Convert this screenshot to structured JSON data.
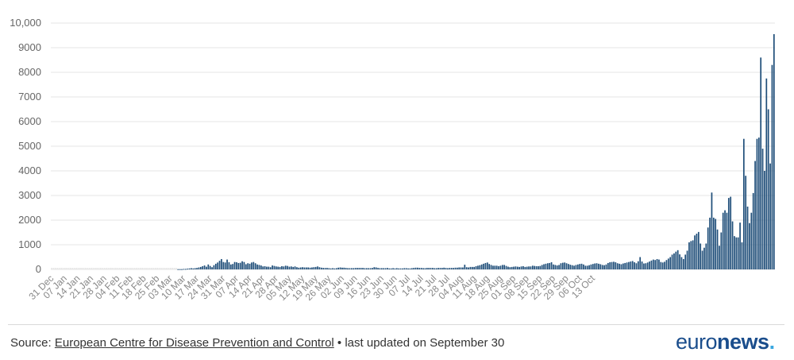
{
  "chart_data": {
    "type": "bar",
    "title": "",
    "xlabel": "",
    "ylabel": "",
    "ylim": [
      0,
      10000
    ],
    "yticks": [
      "0",
      "1000",
      "2000",
      "3000",
      "4000",
      "5000",
      "6000",
      "7000",
      "8000",
      "9000",
      "10,000"
    ],
    "start_date": "31 Dec",
    "xtick_labels": [
      "31 Dec",
      "07 Jan",
      "14 Jan",
      "21 Jan",
      "28 Jan",
      "04 Feb",
      "11 Feb",
      "18 Feb",
      "25 Feb",
      "03 Mar",
      "10 Mar",
      "17 Mar",
      "24 Mar",
      "31 Mar",
      "07 Apr",
      "14 Apr",
      "21 Apr",
      "28 Apr",
      "05 May",
      "12 May",
      "19 May",
      "26 May",
      "02 Jun",
      "09 Jun",
      "16 Jun",
      "23 Jun",
      "30 Jun",
      "07 Jul",
      "14 Jul",
      "21 Jul",
      "28 Jul",
      "04 Aug",
      "11 Aug",
      "18 Aug",
      "25 Aug",
      "01 Sep",
      "08 Sep",
      "15 Sep",
      "22 Sep",
      "29 Sep",
      "06 Oct",
      "13 Oct"
    ],
    "grid": true,
    "bar_color": "#1f4e79",
    "values": [
      0,
      0,
      0,
      0,
      0,
      0,
      0,
      0,
      0,
      0,
      0,
      0,
      0,
      0,
      0,
      0,
      0,
      0,
      0,
      0,
      0,
      0,
      0,
      0,
      0,
      0,
      0,
      0,
      0,
      0,
      0,
      0,
      0,
      0,
      0,
      0,
      0,
      0,
      0,
      0,
      0,
      0,
      0,
      0,
      0,
      0,
      0,
      0,
      0,
      0,
      0,
      0,
      0,
      0,
      0,
      0,
      0,
      0,
      0,
      0,
      0,
      0,
      0,
      0,
      0,
      0,
      0,
      10,
      10,
      10,
      20,
      20,
      30,
      40,
      50,
      40,
      50,
      60,
      80,
      100,
      130,
      160,
      110,
      200,
      140,
      90,
      170,
      230,
      280,
      350,
      420,
      300,
      280,
      400,
      290,
      200,
      220,
      300,
      290,
      260,
      270,
      330,
      300,
      210,
      250,
      230,
      280,
      300,
      250,
      200,
      180,
      160,
      120,
      130,
      110,
      110,
      90,
      160,
      140,
      120,
      110,
      100,
      130,
      120,
      150,
      140,
      110,
      120,
      100,
      120,
      90,
      70,
      80,
      90,
      80,
      80,
      80,
      70,
      80,
      90,
      100,
      120,
      90,
      70,
      60,
      60,
      60,
      50,
      40,
      50,
      40,
      50,
      70,
      80,
      70,
      70,
      60,
      50,
      50,
      50,
      50,
      60,
      60,
      60,
      60,
      60,
      50,
      50,
      50,
      50,
      60,
      90,
      80,
      60,
      50,
      50,
      50,
      50,
      60,
      40,
      40,
      50,
      40,
      50,
      40,
      40,
      40,
      50,
      50,
      40,
      40,
      50,
      60,
      70,
      70,
      60,
      60,
      50,
      50,
      60,
      60,
      60,
      60,
      50,
      50,
      60,
      60,
      60,
      70,
      60,
      50,
      60,
      60,
      60,
      70,
      70,
      80,
      80,
      80,
      190,
      90,
      80,
      100,
      100,
      100,
      130,
      150,
      170,
      200,
      230,
      260,
      280,
      220,
      180,
      150,
      150,
      150,
      130,
      150,
      180,
      180,
      140,
      110,
      90,
      100,
      110,
      120,
      110,
      100,
      120,
      130,
      100,
      110,
      120,
      120,
      150,
      140,
      130,
      130,
      140,
      180,
      210,
      230,
      250,
      260,
      290,
      200,
      180,
      160,
      180,
      250,
      270,
      280,
      250,
      220,
      190,
      170,
      150,
      180,
      200,
      220,
      230,
      200,
      150,
      150,
      170,
      200,
      220,
      240,
      250,
      230,
      210,
      180,
      170,
      200,
      260,
      290,
      300,
      310,
      290,
      250,
      230,
      210,
      240,
      260,
      280,
      300,
      320,
      340,
      290,
      250,
      330,
      500,
      320,
      240,
      250,
      280,
      320,
      360,
      400,
      380,
      420,
      400,
      300,
      280,
      310,
      380,
      440,
      500,
      600,
      650,
      720,
      780,
      610,
      500,
      420,
      600,
      760,
      1100,
      1150,
      1180,
      1380,
      1450,
      1520,
      1050,
      760,
      880,
      1050,
      1700,
      2100,
      3120,
      2100,
      2050,
      1620,
      960,
      1500,
      2300,
      2400,
      2300,
      2900,
      2950,
      1950,
      1350,
      1300,
      1300,
      1900,
      1100,
      5300,
      3800,
      2550,
      1880,
      2300,
      3100,
      4400,
      5300,
      5350,
      8600,
      4900,
      4000,
      7750,
      6500,
      4300,
      8300,
      9550
    ]
  },
  "footer": {
    "source_prefix": "Source: ",
    "source_link": "European Centre for Disease Prevention and Control",
    "source_suffix": " • last updated on September 30"
  },
  "brand": {
    "part1": "euro",
    "part2": "news",
    "part3": "."
  }
}
